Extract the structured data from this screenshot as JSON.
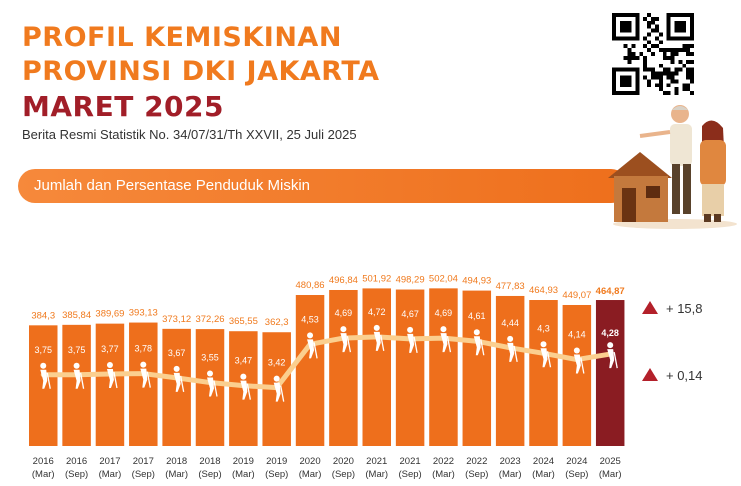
{
  "header": {
    "title_line1": "PROFIL KEMISKINAN",
    "title_line2": "PROVINSI DKI JAKARTA",
    "title_line3": "MARET 2025",
    "subtitle": "Berita Resmi Statistik No. 34/07/31/Th XXVII, 25 Juli 2025"
  },
  "banner": {
    "text": "Jumlah dan Persentase Penduduk Miskin"
  },
  "colors": {
    "bar": "#ee6f1c",
    "bar_highlight": "#8a1c22",
    "trend_line": "#fbcf8f",
    "label_orange": "#f07a1e",
    "title_red": "#a11e28",
    "triangle": "#b3202a"
  },
  "icons": {
    "qr": "qr-code-icon",
    "house": "house-illustration",
    "people": "elderly-person-icon",
    "up": "triangle-up-icon"
  },
  "changes": [
    {
      "label": "+ 15,8",
      "refers_to": "population"
    },
    {
      "label": "+ 0,14",
      "refers_to": "percentage"
    }
  ],
  "chart_data": {
    "type": "bar",
    "categories": [
      [
        "2016",
        "(Mar)"
      ],
      [
        "2016",
        "(Sep)"
      ],
      [
        "2017",
        "(Mar)"
      ],
      [
        "2017",
        "(Sep)"
      ],
      [
        "2018",
        "(Mar)"
      ],
      [
        "2018",
        "(Sep)"
      ],
      [
        "2019",
        "(Mar)"
      ],
      [
        "2019",
        "(Sep)"
      ],
      [
        "2020",
        "(Mar)"
      ],
      [
        "2020",
        "(Sep)"
      ],
      [
        "2021",
        "(Mar)"
      ],
      [
        "2021",
        "(Sep)"
      ],
      [
        "2022",
        "(Mar)"
      ],
      [
        "2022",
        "(Sep)"
      ],
      [
        "2023",
        "(Mar)"
      ],
      [
        "2024",
        "(Mar)"
      ],
      [
        "2024",
        "(Sep)"
      ],
      [
        "2025",
        "(Mar)"
      ]
    ],
    "series": [
      {
        "values": [
          384.3,
          385.84,
          389.69,
          393.13,
          373.12,
          372.26,
          365.55,
          362.3,
          480.86,
          496.84,
          501.92,
          498.29,
          502.04,
          494.93,
          477.83,
          464.93,
          449.07,
          464.87
        ],
        "labels": [
          "384,3",
          "385,84",
          "389,69",
          "393,13",
          "373,12",
          "372,26",
          "365,55",
          "362,3",
          "480,86",
          "496,84",
          "501,92",
          "498,29",
          "502,04",
          "494,93",
          "477,83",
          "464,93",
          "449,07",
          "464,87"
        ]
      },
      {
        "values": [
          3.75,
          3.75,
          3.77,
          3.78,
          3.67,
          3.55,
          3.47,
          3.42,
          4.53,
          4.69,
          4.72,
          4.67,
          4.69,
          4.61,
          4.44,
          4.3,
          4.14,
          4.28
        ],
        "labels": [
          "3,75",
          "3,75",
          "3,77",
          "3,78",
          "3,67",
          "3,55",
          "3,47",
          "3,42",
          "4,53",
          "4,69",
          "4,72",
          "4,67",
          "4,69",
          "4,61",
          "4,44",
          "4,3",
          "4,14",
          "4,28"
        ]
      }
    ],
    "highlight_index": 17,
    "ylim": [
      0,
      520
    ],
    "grid": false
  }
}
